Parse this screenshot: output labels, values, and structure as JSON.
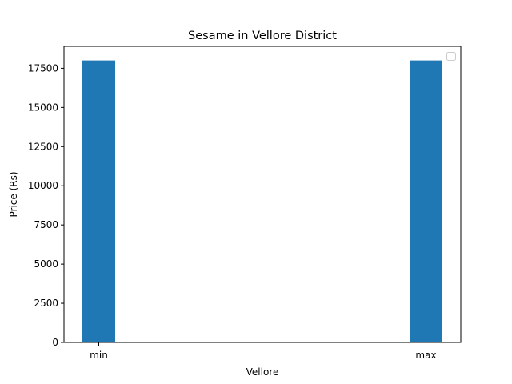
{
  "chart_data": {
    "type": "bar",
    "title": "Sesame in Vellore District",
    "xlabel": "Vellore",
    "ylabel": "Price (Rs)",
    "categories": [
      "min",
      "max"
    ],
    "values": [
      18000,
      18000
    ],
    "ylim": [
      0,
      18900
    ],
    "yticks": [
      0,
      2500,
      5000,
      7500,
      10000,
      12500,
      15000,
      17500
    ],
    "bar_color": "#1f77b4",
    "legend": {
      "placement": "top-right",
      "entries": []
    },
    "grid": false
  }
}
